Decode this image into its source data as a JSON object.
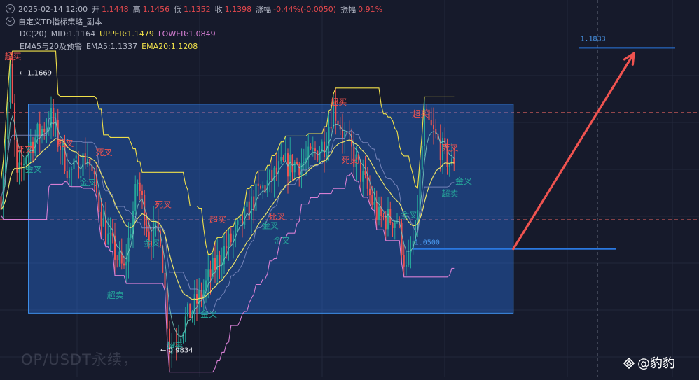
{
  "header": {
    "ohlc_line": {
      "datetime": "2025-02-14 12:00",
      "open_label": "开",
      "open": "1.1448",
      "high_label": "高",
      "high": "1.1456",
      "low_label": "低",
      "low": "1.1352",
      "close_label": "收",
      "close": "1.1398",
      "change_label": "涨幅",
      "change": "-0.44%(-0.0050)",
      "amplitude_label": "振幅",
      "amplitude": "0.91%"
    },
    "strategy_line": {
      "name": "自定义TD指标策略_副本"
    },
    "dc_line": {
      "name": "DC(20)",
      "mid": "MID:1.1164",
      "upper": "UPPER:1.1479",
      "lower": "LOWER:1.0849"
    },
    "ema_line": {
      "name": "EMA5与20及预警",
      "ema5": "EMA5:1.1337",
      "ema20": "EMA20:1.1208"
    }
  },
  "watermark": "OP/USDT永续，",
  "brand": {
    "handle": "@豹豹",
    "logo_icon": "binance-square-icon"
  },
  "colors": {
    "background": "#161a2b",
    "up": "#26a69a",
    "down": "#ef5350",
    "upper_band": "#f0e04a",
    "lower_band": "#d67fd4",
    "mid_band": "#8a93c8",
    "ema": "#e8e06a",
    "box_fill": "rgba(40,110,220,0.42)",
    "box_border": "#3d8ee8",
    "arrow": "#ef5350",
    "level_line": "#2a78e0",
    "overbought": "#ef5350",
    "oversold": "#26a69a"
  },
  "chart_data": {
    "type": "candlestick",
    "symbol": "OP/USDT",
    "ylim": [
      0.965,
      1.215
    ],
    "x_count": 200,
    "grid": true,
    "price_markers": [
      {
        "label": "← 1.1669",
        "x": 8,
        "value": 1.1669
      },
      {
        "label": "← 0.9834",
        "x": 70,
        "value": 0.9834
      }
    ],
    "range_box": {
      "x_start": 12,
      "x_end": 225,
      "top": 1.146,
      "bottom": 1.0075
    },
    "target_level": {
      "label": "1.1833",
      "value": 1.1833,
      "x_start": 260,
      "x_end": 290
    },
    "support_level": {
      "label": "1.0500",
      "value": 1.05,
      "x_start": 181,
      "x_end": 270
    },
    "arrow": {
      "from_x": 225,
      "from_value": 1.05,
      "to_x": 278,
      "to_value": 1.1833
    },
    "dashed_levels": [
      1.1405,
      1.0695
    ],
    "signals": [
      {
        "text": "超买",
        "x": 4,
        "value": 1.1755,
        "kind": "overbought"
      },
      {
        "text": "死叉",
        "x": 9,
        "value": 1.114,
        "kind": "overbought"
      },
      {
        "text": "金叉",
        "x": 13,
        "value": 1.101,
        "kind": "oversold"
      },
      {
        "text": "死叉",
        "x": 27,
        "value": 1.118,
        "kind": "overbought"
      },
      {
        "text": "死叉",
        "x": 44,
        "value": 1.112,
        "kind": "overbought"
      },
      {
        "text": "金叉",
        "x": 37,
        "value": 1.092,
        "kind": "oversold"
      },
      {
        "text": "超卖",
        "x": 49,
        "value": 1.0175,
        "kind": "oversold"
      },
      {
        "text": "死叉",
        "x": 70,
        "value": 1.0775,
        "kind": "overbought"
      },
      {
        "text": "金叉",
        "x": 65,
        "value": 1.052,
        "kind": "oversold"
      },
      {
        "text": "超卖",
        "x": 75,
        "value": 0.984,
        "kind": "oversold"
      },
      {
        "text": "金叉",
        "x": 90,
        "value": 1.005,
        "kind": "oversold"
      },
      {
        "text": "超买",
        "x": 94,
        "value": 1.0675,
        "kind": "overbought"
      },
      {
        "text": "金叉",
        "x": 117,
        "value": 1.0635,
        "kind": "oversold"
      },
      {
        "text": "死叉",
        "x": 120,
        "value": 1.0695,
        "kind": "overbought"
      },
      {
        "text": "金叉",
        "x": 122,
        "value": 1.0535,
        "kind": "oversold"
      },
      {
        "text": "超买",
        "x": 147,
        "value": 1.1455,
        "kind": "overbought"
      },
      {
        "text": "死叉",
        "x": 152,
        "value": 1.107,
        "kind": "overbought"
      },
      {
        "text": "金叉",
        "x": 178,
        "value": 1.0705,
        "kind": "oversold"
      },
      {
        "text": "超买",
        "x": 183,
        "value": 1.1375,
        "kind": "overbought"
      },
      {
        "text": "死叉",
        "x": 196,
        "value": 1.115,
        "kind": "overbought"
      },
      {
        "text": "金叉",
        "x": 202,
        "value": 1.093,
        "kind": "oversold"
      },
      {
        "text": "超卖",
        "x": 196,
        "value": 1.085,
        "kind": "oversold"
      }
    ],
    "price_path": [
      [
        0,
        1.085
      ],
      [
        4,
        1.167
      ],
      [
        7,
        1.095
      ],
      [
        12,
        1.118
      ],
      [
        22,
        1.137
      ],
      [
        30,
        1.1
      ],
      [
        38,
        1.112
      ],
      [
        46,
        1.06
      ],
      [
        54,
        1.035
      ],
      [
        60,
        1.095
      ],
      [
        65,
        1.06
      ],
      [
        70,
        1.06
      ],
      [
        74,
        0.985
      ],
      [
        80,
        1.0
      ],
      [
        88,
        1.02
      ],
      [
        96,
        1.045
      ],
      [
        104,
        1.062
      ],
      [
        112,
        1.085
      ],
      [
        124,
        1.105
      ],
      [
        134,
        1.108
      ],
      [
        142,
        1.12
      ],
      [
        146,
        1.145
      ],
      [
        150,
        1.128
      ],
      [
        158,
        1.1
      ],
      [
        166,
        1.07
      ],
      [
        174,
        1.07
      ],
      [
        178,
        1.035
      ],
      [
        182,
        1.06
      ],
      [
        186,
        1.137
      ],
      [
        192,
        1.12
      ],
      [
        198,
        1.105
      ],
      [
        204,
        1.135
      ],
      [
        210,
        1.14
      ]
    ]
  }
}
